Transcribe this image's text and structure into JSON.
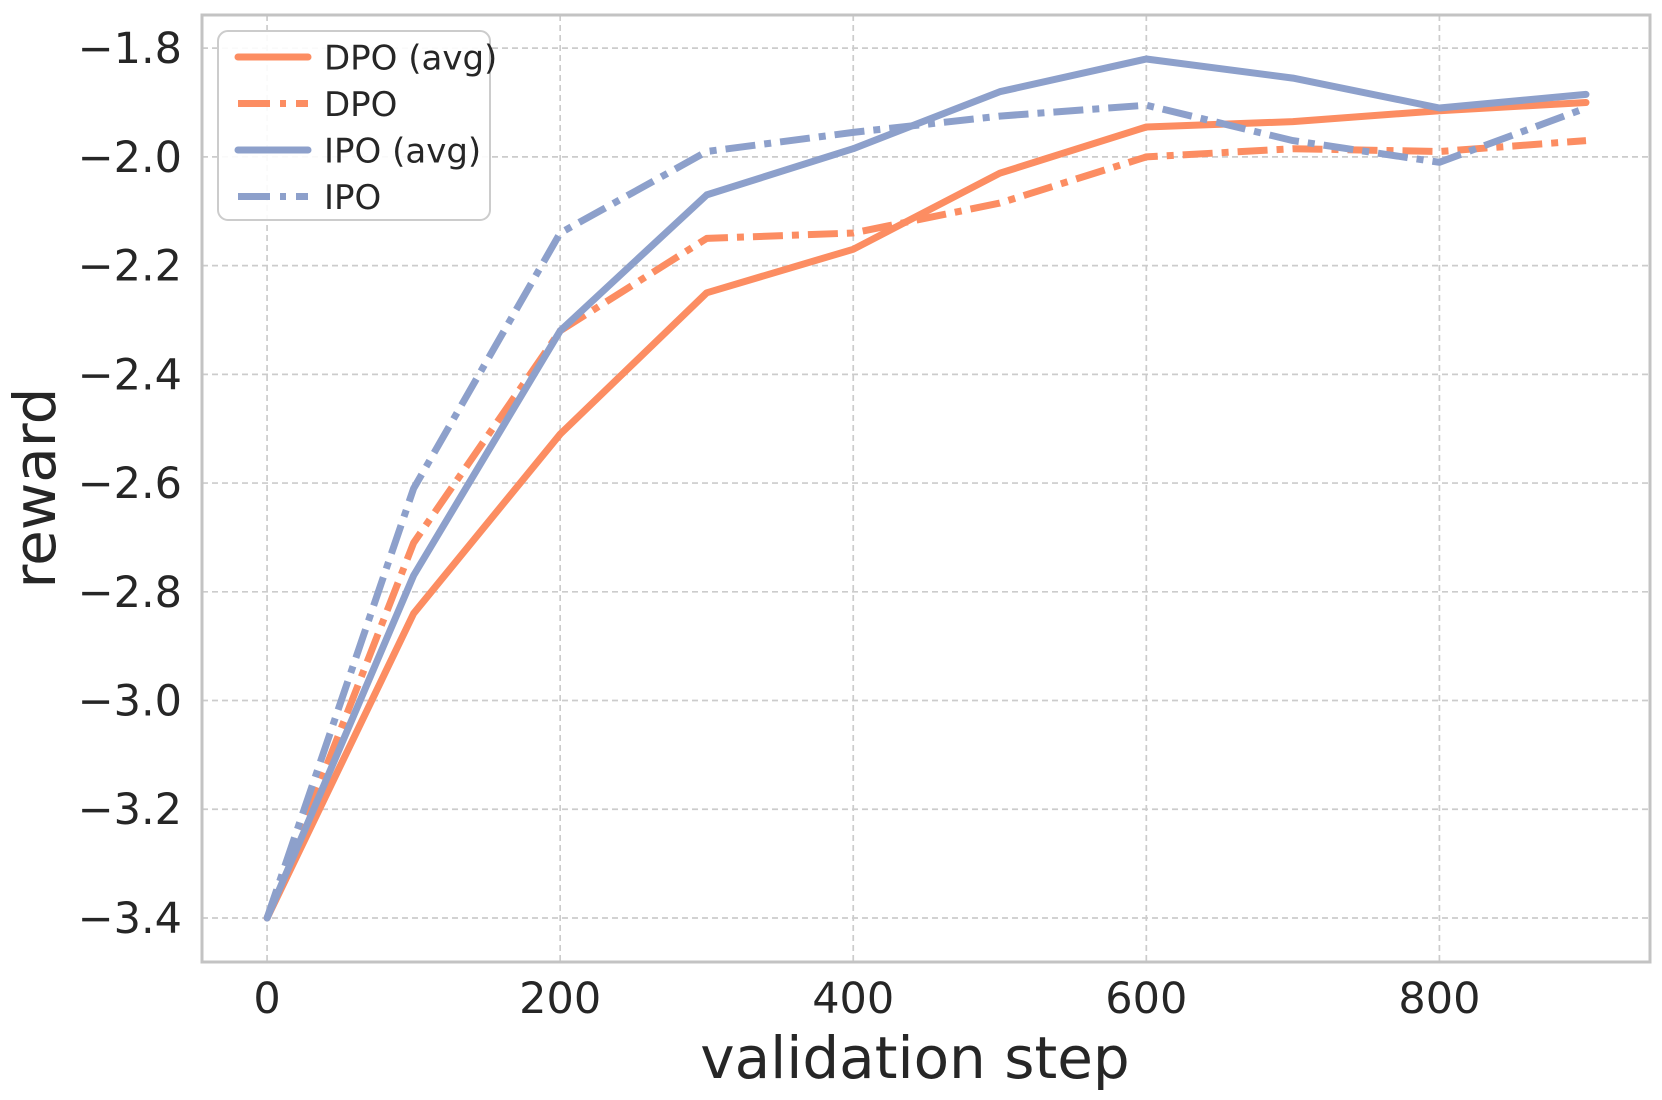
{
  "chart_data": {
    "type": "line",
    "title": "",
    "xlabel": "validation step",
    "ylabel": "reward",
    "x": [
      0,
      100,
      200,
      300,
      400,
      500,
      600,
      700,
      800,
      900
    ],
    "series": [
      {
        "name": "DPO (avg)",
        "color": "#fc8d62",
        "line_style": "solid",
        "values": [
          -3.4,
          -2.84,
          -2.51,
          -2.25,
          -2.17,
          -2.03,
          -1.945,
          -1.935,
          -1.915,
          -1.9
        ]
      },
      {
        "name": "DPO",
        "color": "#fc8d62",
        "line_style": "dashdot",
        "values": [
          -3.4,
          -2.71,
          -2.32,
          -2.15,
          -2.14,
          -2.085,
          -2.0,
          -1.985,
          -1.99,
          -1.97
        ]
      },
      {
        "name": "IPO (avg)",
        "color": "#8da0cb",
        "line_style": "solid",
        "values": [
          -3.4,
          -2.77,
          -2.32,
          -2.07,
          -1.985,
          -1.88,
          -1.82,
          -1.855,
          -1.91,
          -1.885
        ]
      },
      {
        "name": "IPO",
        "color": "#8da0cb",
        "line_style": "dashdot",
        "values": [
          -3.4,
          -2.61,
          -2.14,
          -1.99,
          -1.955,
          -1.925,
          -1.905,
          -1.97,
          -2.01,
          -1.91
        ]
      }
    ],
    "x_ticks": [
      0,
      200,
      400,
      600,
      800
    ],
    "x_tick_labels": [
      "0",
      "200",
      "400",
      "600",
      "800"
    ],
    "y_ticks": [
      -1.8,
      -2.0,
      -2.2,
      -2.4,
      -2.6,
      -2.8,
      -3.0,
      -3.2,
      -3.4
    ],
    "y_tick_labels": [
      "−1.8",
      "−2.0",
      "−2.2",
      "−2.4",
      "−2.6",
      "−2.8",
      "−3.0",
      "−3.2",
      "−3.4"
    ],
    "xlim": [
      -44.4,
      943.7
    ],
    "ylim": [
      -3.481,
      -1.739
    ],
    "grid": true,
    "legend_position": "upper left",
    "legend_entries": [
      "DPO (avg)",
      "DPO",
      "IPO (avg)",
      "IPO"
    ]
  },
  "style": {
    "dpo_color": "#fc8d62",
    "ipo_color": "#8da0cb",
    "grid_color": "#cccccc",
    "spine_color": "#c3c3c3",
    "text_color": "#262626",
    "background": "#ffffff"
  }
}
